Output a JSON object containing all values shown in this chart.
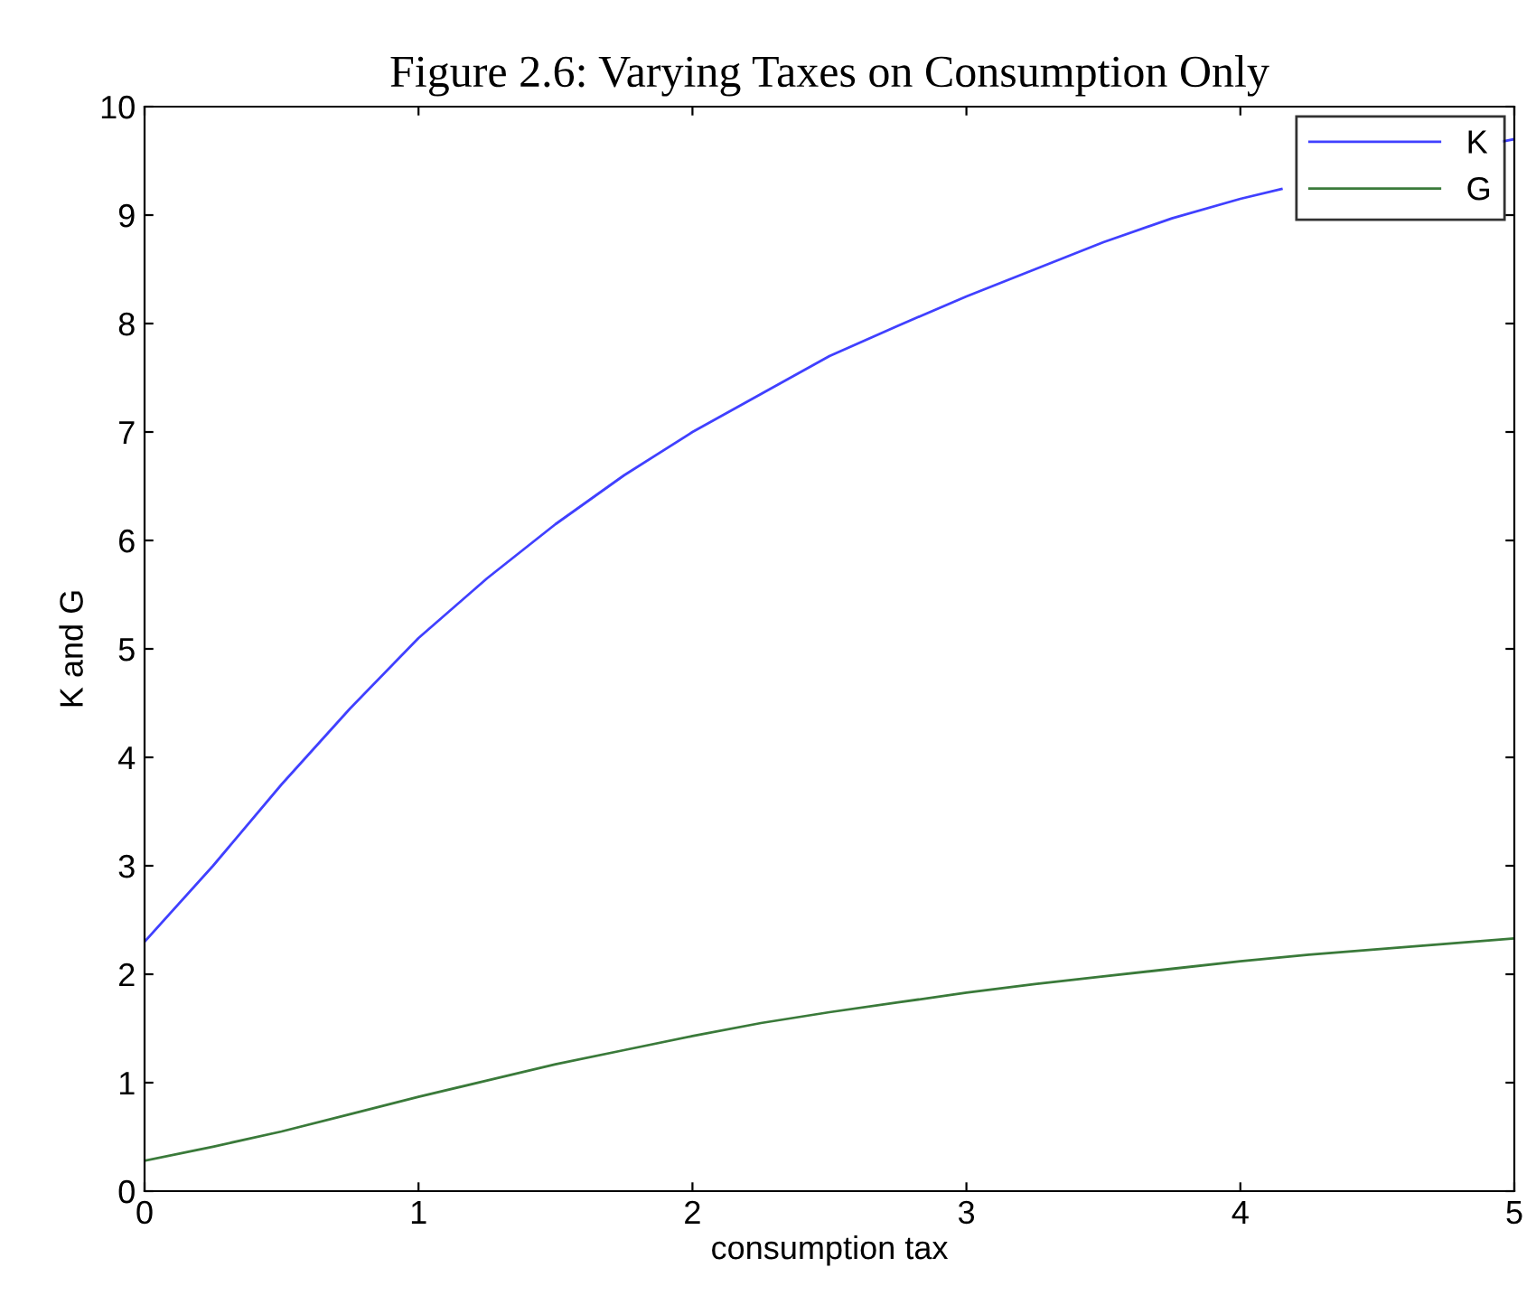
{
  "chart_data": {
    "type": "line",
    "title": "Figure 2.6: Varying Taxes on Consumption Only",
    "xlabel": "consumption tax",
    "ylabel": "K and G",
    "x": [
      0,
      0.25,
      0.5,
      0.75,
      1,
      1.25,
      1.5,
      1.75,
      2,
      2.25,
      2.5,
      2.75,
      3,
      3.25,
      3.5,
      3.75,
      4,
      4.25,
      4.5,
      4.75,
      5
    ],
    "series": [
      {
        "name": "K",
        "color": "#4040ff",
        "x": [
          0,
          0.25,
          0.5,
          0.75,
          1,
          1.25,
          1.5,
          1.75,
          2,
          2.25,
          2.5,
          2.75,
          3,
          3.25,
          3.5,
          3.75,
          4,
          4.15,
          4.5,
          4.75,
          4.96,
          5
        ],
        "values": [
          2.3,
          3.0,
          3.75,
          4.45,
          5.1,
          5.65,
          6.15,
          6.6,
          7.0,
          7.35,
          7.7,
          7.98,
          8.25,
          8.5,
          8.75,
          8.97,
          9.15,
          9.24,
          null,
          null,
          9.68,
          9.7
        ]
      },
      {
        "name": "G",
        "color": "#3a7a3a",
        "values": [
          0.28,
          0.41,
          0.55,
          0.71,
          0.87,
          1.02,
          1.17,
          1.3,
          1.43,
          1.55,
          1.65,
          1.74,
          1.83,
          1.91,
          1.98,
          2.05,
          2.12,
          2.18,
          2.23,
          2.28,
          2.33
        ]
      }
    ],
    "xlim": [
      0,
      5
    ],
    "xticks": [
      0,
      1,
      2,
      3,
      4,
      5
    ],
    "ylim": [
      0,
      10
    ],
    "yticks": [
      0,
      1,
      2,
      3,
      4,
      5,
      6,
      7,
      8,
      9,
      10
    ],
    "grid": false,
    "legend": "top right",
    "marker": "none",
    "line_style": "solid"
  }
}
